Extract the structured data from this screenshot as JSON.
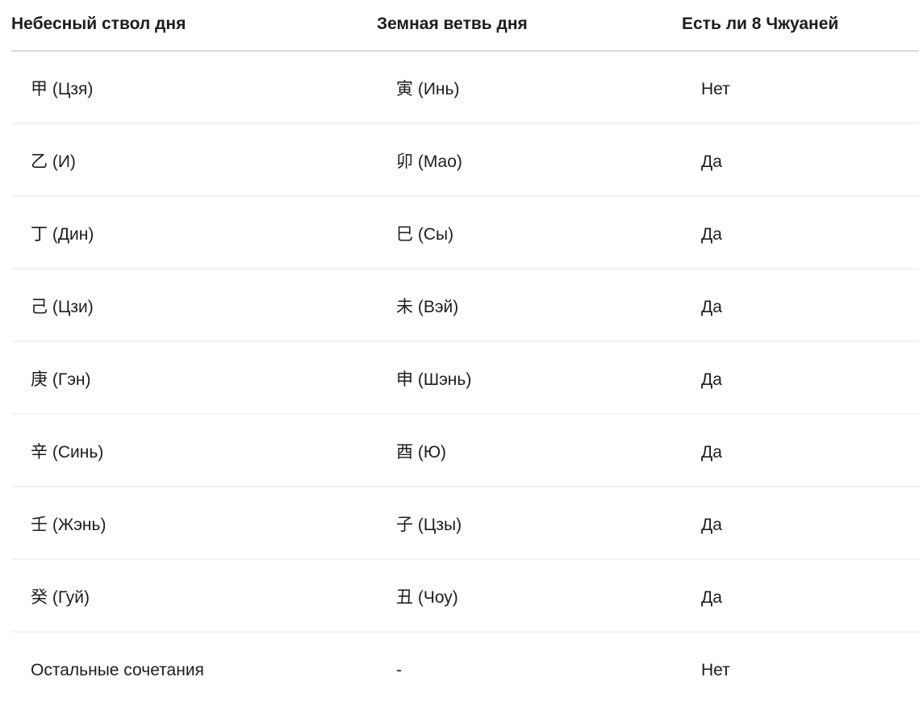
{
  "table": {
    "columns": [
      {
        "label": "Небесный ствол дня"
      },
      {
        "label": "Земная ветвь дня"
      },
      {
        "label": "Есть ли 8 Чжуаней"
      }
    ],
    "rows": [
      [
        "甲 (Цзя)",
        "寅 (Инь)",
        "Нет"
      ],
      [
        "乙 (И)",
        "卯 (Мао)",
        "Да"
      ],
      [
        "丁 (Дин)",
        "巳 (Сы)",
        "Да"
      ],
      [
        "己 (Цзи)",
        "未 (Вэй)",
        "Да"
      ],
      [
        "庚 (Гэн)",
        "申 (Шэнь)",
        "Да"
      ],
      [
        "辛 (Синь)",
        "酉 (Ю)",
        "Да"
      ],
      [
        "壬 (Жэнь)",
        "子 (Цзы)",
        "Да"
      ],
      [
        "癸 (Гуй)",
        "丑 (Чоу)",
        "Да"
      ],
      [
        "Остальные сочетания",
        "-",
        "Нет"
      ]
    ]
  },
  "colors": {
    "background": "#ffffff",
    "text": "#1d1d1f",
    "header_divider": "#d9d9d9",
    "row_divider": "#f2f2f2"
  }
}
